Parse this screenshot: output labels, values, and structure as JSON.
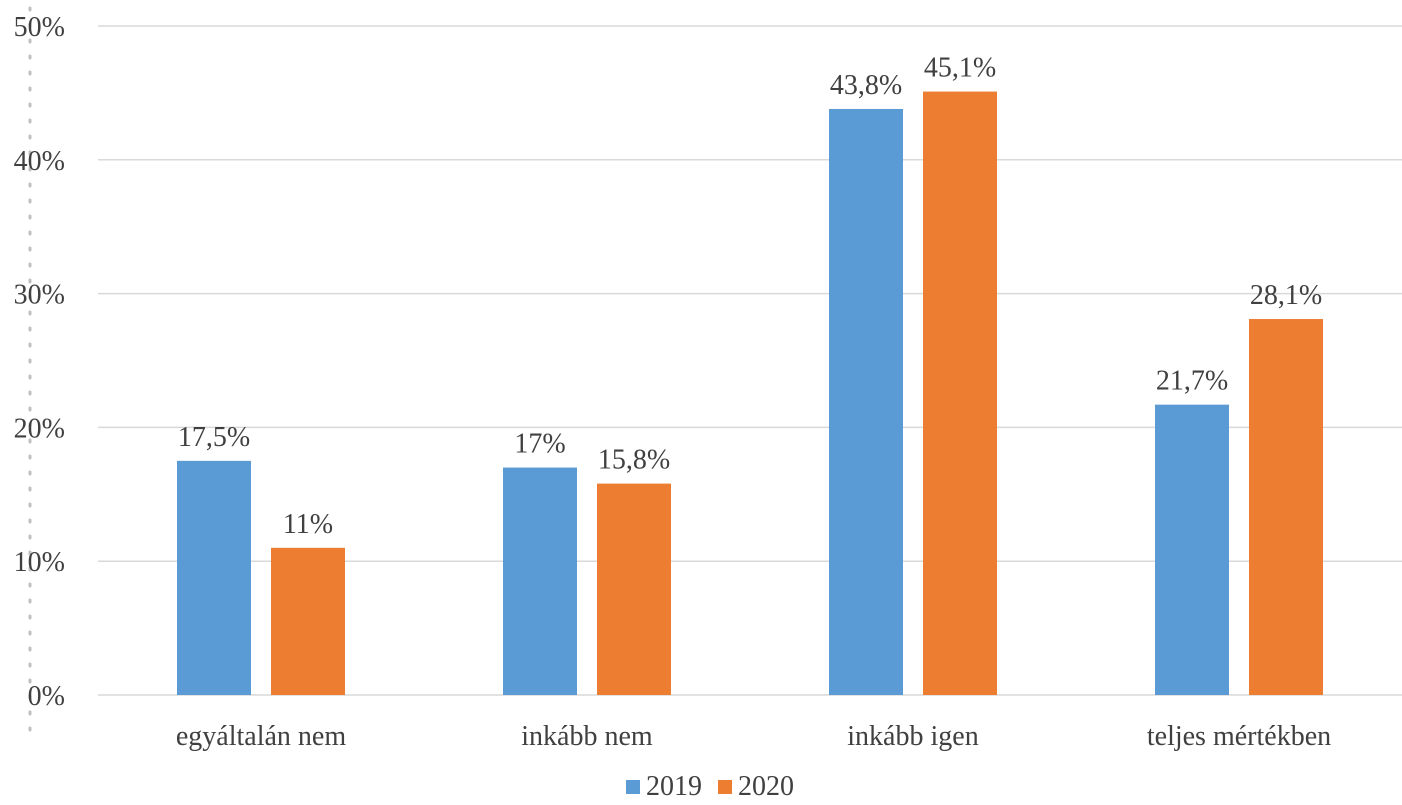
{
  "chart_data": {
    "type": "bar",
    "title": "",
    "xlabel": "",
    "ylabel": "",
    "categories": [
      "egyáltalán nem",
      "inkább nem",
      "inkább igen",
      "teljes mértékben"
    ],
    "series": [
      {
        "name": "2019",
        "color": "#5b9bd5",
        "values": [
          17.5,
          17,
          43.8,
          21.7
        ],
        "labels": [
          "17,5%",
          "17%",
          "43,8%",
          "21,7%"
        ]
      },
      {
        "name": "2020",
        "color": "#ed7d31",
        "values": [
          11,
          15.8,
          45.1,
          28.1
        ],
        "labels": [
          "11%",
          "15,8%",
          "45,1%",
          "28,1%"
        ]
      }
    ],
    "ylim": [
      0,
      50
    ],
    "yticks": [
      "0%",
      "10%",
      "20%",
      "30%",
      "40%",
      "50%"
    ],
    "grid": true,
    "legend_position": "bottom"
  }
}
